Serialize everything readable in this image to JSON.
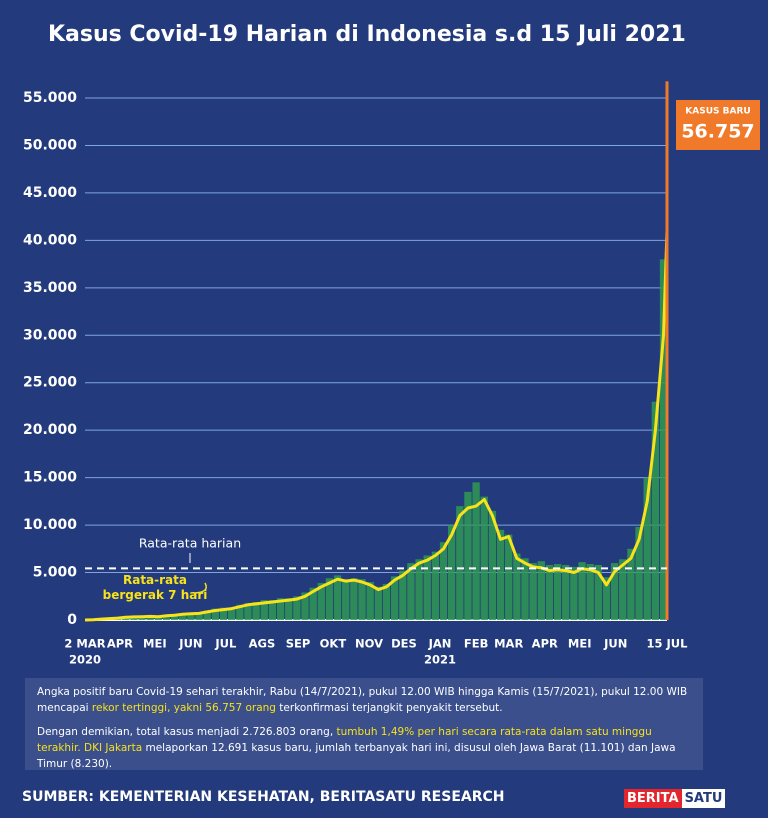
{
  "chart_data": {
    "type": "bar-line",
    "title": "Kasus Covid-19 Harian di Indonesia s.d 15 Juli 2021",
    "xlim": [
      0,
      500
    ],
    "xticks": [
      {
        "value": 0,
        "label": "2 MAR"
      },
      {
        "value": 30,
        "label": "APR"
      },
      {
        "value": 60,
        "label": "MEI"
      },
      {
        "value": 91,
        "label": "JUN"
      },
      {
        "value": 121,
        "label": "JUL"
      },
      {
        "value": 152,
        "label": "AGS"
      },
      {
        "value": 183,
        "label": "SEP"
      },
      {
        "value": 213,
        "label": "OKT"
      },
      {
        "value": 244,
        "label": "NOV"
      },
      {
        "value": 274,
        "label": "DES"
      },
      {
        "value": 305,
        "label": "JAN"
      },
      {
        "value": 336,
        "label": "FEB"
      },
      {
        "value": 364,
        "label": "MAR"
      },
      {
        "value": 395,
        "label": "APR"
      },
      {
        "value": 425,
        "label": "MEI"
      },
      {
        "value": 456,
        "label": "JUN"
      },
      {
        "value": 500,
        "label": "15 JUL"
      }
    ],
    "year_labels": [
      {
        "value": 0,
        "label": "2020"
      },
      {
        "value": 305,
        "label": "2021"
      }
    ],
    "ylim": [
      0,
      55000
    ],
    "yticks": [
      0,
      {
        "value": 5000,
        "label": "5.000"
      },
      {
        "value": 10000,
        "label": "10.000"
      },
      {
        "value": 15000,
        "label": "15.000"
      },
      {
        "value": 20000,
        "label": "20.000"
      },
      {
        "value": 25000,
        "label": "25.000"
      },
      {
        "value": 30000,
        "label": "30.000"
      },
      {
        "value": 35000,
        "label": "35.000"
      },
      {
        "value": 40000,
        "label": "40.000"
      },
      {
        "value": 45000,
        "label": "45.000"
      },
      {
        "value": 50000,
        "label": "50.000"
      },
      {
        "value": 55000,
        "label": "55.000"
      }
    ],
    "grid": true,
    "series": [
      {
        "type": "bar",
        "color": "#2e9a52",
        "x": [
          0,
          7,
          14,
          21,
          28,
          35,
          42,
          49,
          56,
          63,
          70,
          77,
          84,
          91,
          98,
          105,
          112,
          119,
          126,
          133,
          140,
          147,
          154,
          161,
          168,
          175,
          182,
          189,
          196,
          203,
          210,
          217,
          224,
          231,
          238,
          245,
          252,
          259,
          266,
          273,
          280,
          287,
          294,
          301,
          308,
          315,
          322,
          329,
          336,
          343,
          350,
          357,
          364,
          371,
          378,
          385,
          392,
          399,
          406,
          413,
          420,
          427,
          434,
          441,
          448,
          455,
          462,
          469,
          476,
          483,
          490,
          497
        ],
        "values": [
          2,
          40,
          110,
          180,
          230,
          300,
          400,
          420,
          500,
          380,
          520,
          560,
          700,
          750,
          820,
          1000,
          1200,
          1300,
          1300,
          1600,
          1800,
          1900,
          2100,
          2100,
          2300,
          2300,
          2500,
          2900,
          3400,
          3900,
          4400,
          4700,
          4300,
          4400,
          4300,
          4000,
          3500,
          3800,
          4600,
          5200,
          6000,
          6400,
          6800,
          7200,
          8200,
          10000,
          12000,
          13500,
          14500,
          13000,
          11500,
          9500,
          9000,
          7000,
          6500,
          6000,
          6200,
          5800,
          5900,
          5800,
          5600,
          6100,
          5900,
          5800,
          4500,
          6000,
          6400,
          7500,
          9800,
          15000,
          23000,
          38000
        ]
      },
      {
        "type": "line",
        "name": [
          "Rata-rata",
          "bergerak 7 hari"
        ],
        "color": "#f7e21b",
        "x": [
          0,
          7,
          14,
          21,
          28,
          35,
          42,
          49,
          56,
          63,
          70,
          77,
          84,
          91,
          98,
          105,
          112,
          119,
          126,
          133,
          140,
          147,
          154,
          161,
          168,
          175,
          182,
          189,
          196,
          203,
          210,
          217,
          224,
          231,
          238,
          245,
          252,
          259,
          266,
          273,
          280,
          287,
          294,
          301,
          308,
          315,
          322,
          329,
          336,
          343,
          350,
          357,
          364,
          371,
          378,
          385,
          392,
          399,
          406,
          413,
          420,
          427,
          434,
          441,
          448,
          455,
          462,
          469,
          476,
          483,
          490,
          497,
          500
        ],
        "values": [
          2,
          20,
          100,
          150,
          200,
          280,
          330,
          350,
          380,
          350,
          450,
          500,
          600,
          650,
          700,
          850,
          1000,
          1100,
          1200,
          1400,
          1600,
          1700,
          1800,
          1900,
          2000,
          2100,
          2200,
          2500,
          3000,
          3500,
          3900,
          4300,
          4100,
          4200,
          4000,
          3700,
          3200,
          3500,
          4200,
          4700,
          5400,
          6000,
          6300,
          6800,
          7500,
          9000,
          11000,
          11800,
          12000,
          12700,
          11000,
          8500,
          8800,
          6500,
          6000,
          5600,
          5500,
          5200,
          5300,
          5200,
          5000,
          5400,
          5300,
          5000,
          3700,
          5100,
          5800,
          6500,
          8500,
          12500,
          20000,
          30000,
          41000
        ]
      },
      {
        "type": "bar",
        "name": "KASUS BARU",
        "color": "#f07a2a",
        "x": [
          500
        ],
        "values": [
          56757
        ],
        "value_labels": [
          "56.757"
        ]
      }
    ],
    "average": {
      "label": "Rata-rata harian",
      "value": 5443
    }
  },
  "notes": [
    [
      "Angka positif baru Covid-19 sehari terakhir, Rabu (14/7/2021), pukul 12.00 WIB hingga Kamis (15/7/2021), pukul 12.00 WIB mencapai ",
      "rekor tertinggi, yakni 56.757 orang",
      " terkonfirmasi terjangkit penyakit tersebut."
    ],
    [
      "Dengan demikian, total kasus menjadi 2.726.803 orang, ",
      "tumbuh 1,49% per hari secara rata-rata dalam satu minggu terakhir.",
      " ",
      "DKI Jakarta",
      " melaporkan 12.691 kasus baru, jumlah terbanyak hari ini, disusul oleh Jawa Barat (11.101) dan Jawa Timur (8.230)."
    ]
  ],
  "source": "SUMBER: KEMENTERIAN KESEHATAN, BERITASATU RESEARCH",
  "logo": [
    "BERITA",
    "SATU"
  ]
}
